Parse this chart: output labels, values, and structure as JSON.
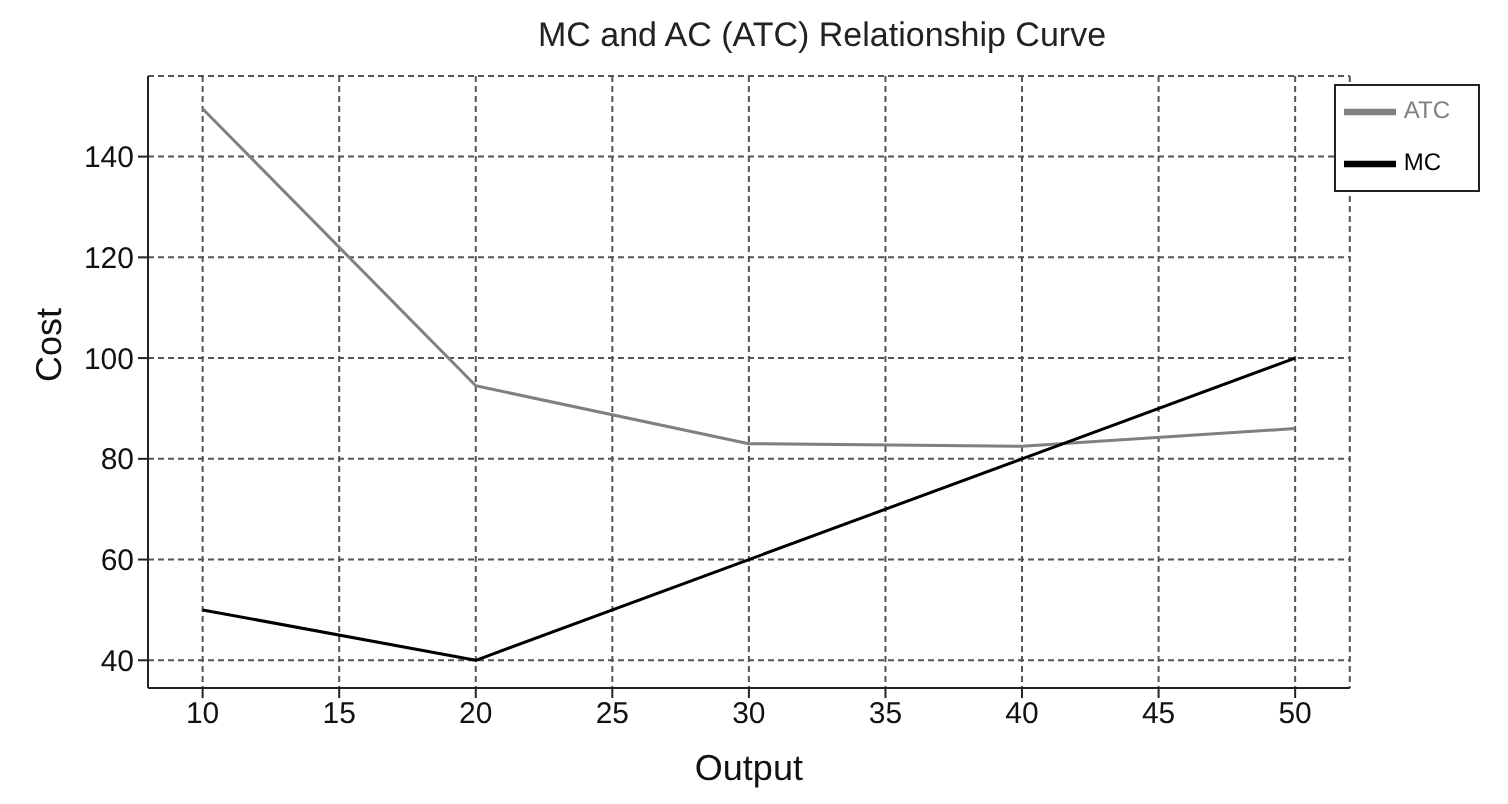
{
  "chart_data": {
    "type": "line",
    "title": "MC and AC (ATC) Relationship Curve",
    "xlabel": "Output",
    "ylabel": "Cost",
    "x": [
      10,
      20,
      30,
      40,
      50
    ],
    "series": [
      {
        "name": "ATC",
        "color": "#808080",
        "values": [
          149.5,
          94.5,
          83,
          82.5,
          86
        ]
      },
      {
        "name": "MC",
        "color": "#000000",
        "values": [
          50,
          40,
          60,
          80,
          100
        ]
      }
    ],
    "xlim": [
      8,
      52
    ],
    "xticks": [
      10,
      15,
      20,
      25,
      30,
      35,
      40,
      45,
      50
    ],
    "ylim": [
      34.5,
      156
    ],
    "yticks": [
      40,
      60,
      80,
      100,
      120,
      140
    ],
    "grid": true,
    "legend": "top right",
    "marker": "none",
    "line_style": "solid"
  }
}
